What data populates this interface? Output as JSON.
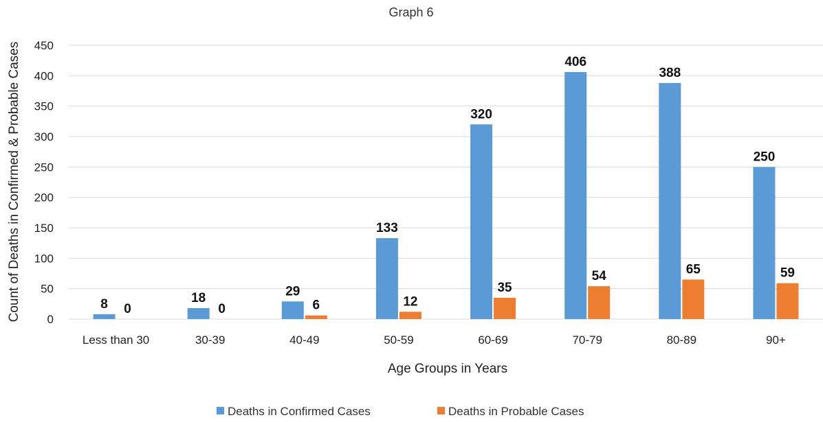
{
  "chart_data": {
    "type": "bar",
    "title": "Graph 6",
    "xlabel": "Age Groups in Years",
    "ylabel": "Count of Deaths in Confirmed & Probable Cases",
    "categories": [
      "Less than 30",
      "30-39",
      "40-49",
      "50-59",
      "60-69",
      "70-79",
      "80-89",
      "90+"
    ],
    "series": [
      {
        "name": "Deaths in Confirmed Cases",
        "color": "#5b9bd5",
        "values": [
          8,
          18,
          29,
          133,
          320,
          406,
          388,
          250
        ]
      },
      {
        "name": "Deaths in Probable Cases",
        "color": "#ed7d31",
        "values": [
          0,
          0,
          6,
          12,
          35,
          54,
          65,
          59
        ]
      }
    ],
    "ylim": [
      0,
      450
    ],
    "yticks": [
      0,
      50,
      100,
      150,
      200,
      250,
      300,
      350,
      400,
      450
    ],
    "grid": true,
    "legend_position": "bottom",
    "data_labels": true
  }
}
